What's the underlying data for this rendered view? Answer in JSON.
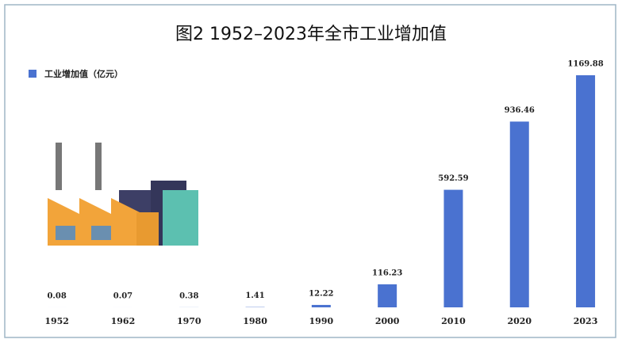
{
  "chart_data": {
    "type": "bar",
    "title": "图2 1952–2023年全市工业增加值",
    "categories": [
      "1952",
      "1962",
      "1970",
      "1980",
      "1990",
      "2000",
      "2010",
      "2020",
      "2023"
    ],
    "series": [
      {
        "name": "工业增加值（亿元）",
        "color": "#4a72d0",
        "values": [
          0.08,
          0.07,
          0.38,
          1.41,
          12.22,
          116.23,
          592.59,
          936.46,
          1169.88
        ]
      }
    ],
    "legend": "top-left"
  }
}
